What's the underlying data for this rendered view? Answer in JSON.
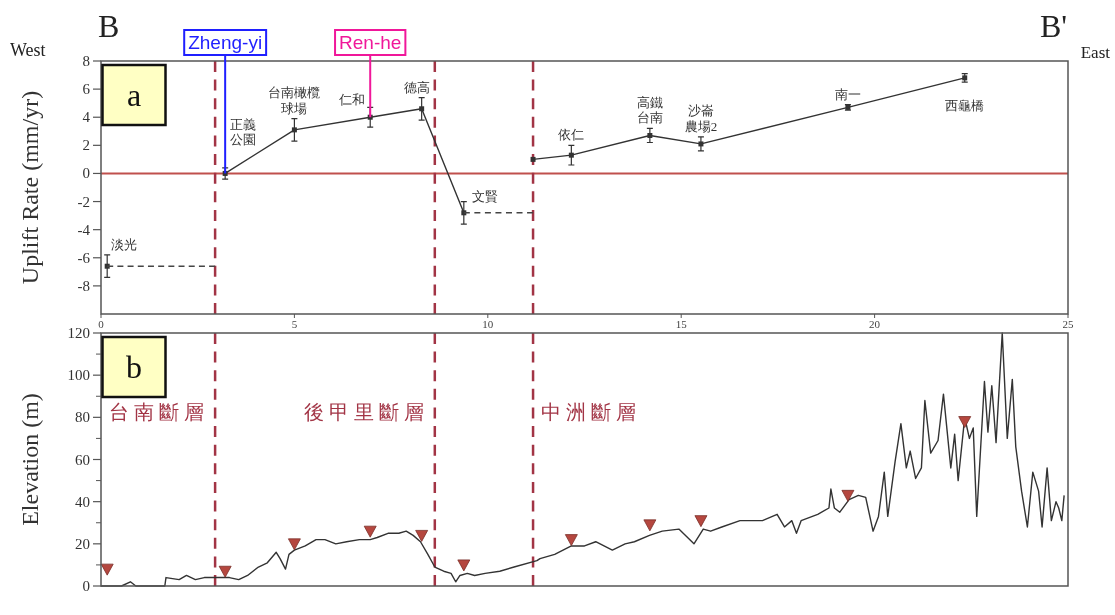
{
  "chart_data": [
    {
      "type": "line",
      "title": "a",
      "ylabel": "Uplift Rate (mm/yr)",
      "xlim": [
        0,
        25
      ],
      "xticks": [
        0,
        5,
        10,
        15,
        20,
        25
      ],
      "ylim": [
        -10,
        8
      ],
      "yticks": [
        -8,
        -6,
        -4,
        -2,
        0,
        2,
        4,
        6,
        8
      ],
      "marker": "square",
      "series": [
        {
          "type": "scatter",
          "color": "#333333",
          "x": [
            0.16
          ],
          "values": [
            -6.6
          ],
          "errors": [
            0.8
          ],
          "value_labels": [
            "淡光"
          ]
        },
        {
          "color": "#333333",
          "x": [
            3.21,
            5.0,
            6.96,
            8.29,
            9.38
          ],
          "values": [
            0,
            3.1,
            4.0,
            4.6,
            -2.8
          ],
          "errors": [
            0.4,
            0.8,
            0.7,
            0.8,
            0.8
          ],
          "value_labels": [
            "正義公園",
            "台南橄欖球場",
            "仁和",
            "德高",
            "文賢"
          ]
        },
        {
          "color": "#333333",
          "x": [
            11.17,
            12.16,
            14.19,
            15.51,
            19.31,
            22.33
          ],
          "values": [
            1.0,
            1.3,
            2.7,
            2.1,
            4.7,
            6.8
          ],
          "errors": [
            null,
            0.7,
            0.5,
            0.5,
            0.2,
            0.3
          ],
          "value_labels": [
            null,
            "依仁",
            "高鐵台南",
            "沙崙農場2",
            "南一",
            "西龜橋"
          ]
        },
        {
          "color": "#444444",
          "x": [
            0.16,
            2.95
          ],
          "values": [
            -6.6,
            -6.6
          ],
          "line_style": "dashed",
          "marker": "none"
        },
        {
          "color": "#444444",
          "x": [
            9.38,
            11.17
          ],
          "values": [
            -2.8,
            -2.8
          ],
          "line_style": "dashed",
          "marker": "none"
        }
      ],
      "ref_lines": [
        {
          "axis": "y",
          "value": 0,
          "color": "#c0504d"
        },
        {
          "axis": "x",
          "value": 2.95,
          "color": "#a23445",
          "line_style": "dashed"
        },
        {
          "axis": "x",
          "value": 8.63,
          "color": "#a23445",
          "line_style": "dashed"
        },
        {
          "axis": "x",
          "value": 11.17,
          "color": "#a23445",
          "line_style": "dashed"
        }
      ],
      "annotations": [
        "B",
        "West",
        "B'",
        "East",
        {
          "text": "Zheng-yi",
          "x": 3.21,
          "y": 0
        },
        {
          "text": "Ren-he",
          "x": 6.96,
          "y": 4.0
        }
      ]
    },
    {
      "type": "line",
      "title": "b",
      "ylabel": "Elevation (m)",
      "xlim": [
        0,
        25
      ],
      "ylim": [
        0,
        120
      ],
      "yticks": [
        0,
        20,
        40,
        60,
        80,
        100,
        120
      ],
      "tick_labels": "y",
      "series": [
        {
          "color": "#333333",
          "x": [
            0,
            0.53,
            0.76,
            0.9,
            1.65,
            1.68,
            2.02,
            2.21,
            2.44,
            2.67,
            2.95,
            3.32,
            3.56,
            3.79,
            4.07,
            4.3,
            4.53,
            4.63,
            4.77,
            4.86,
            5.0,
            5.28,
            5.56,
            5.79,
            6.07,
            6.35,
            6.68,
            6.96,
            7.14,
            7.42,
            7.7,
            7.89,
            8.07,
            8.26,
            8.45,
            8.63,
            8.86,
            9.05,
            9.17,
            9.28,
            9.47,
            9.66,
            9.93,
            10.31,
            10.68,
            11.27,
            11.35,
            11.73,
            12.16,
            12.5,
            12.79,
            13.22,
            13.55,
            13.79,
            14.18,
            14.51,
            14.94,
            15.33,
            15.57,
            15.76,
            16.05,
            16.52,
            17.1,
            17.48,
            17.67,
            17.86,
            17.98,
            18.1,
            18.53,
            18.82,
            18.87,
            18.96,
            19.1,
            19.34,
            19.58,
            19.77,
            19.96,
            20.1,
            20.25,
            20.34,
            20.53,
            20.68,
            20.82,
            20.92,
            21.06,
            21.21,
            21.3,
            21.45,
            21.64,
            21.78,
            21.97,
            22.07,
            22.16,
            22.33,
            22.45,
            22.55,
            22.64,
            22.84,
            22.93,
            23.03,
            23.14,
            23.3,
            23.43,
            23.56,
            23.65,
            23.8,
            23.95,
            24.09,
            24.24,
            24.33,
            24.46,
            24.57,
            24.69,
            24.76,
            24.84,
            24.9
          ],
          "values": [
            0,
            0,
            2,
            0,
            0,
            4,
            3,
            5,
            3,
            4,
            4,
            4,
            3,
            5,
            9,
            11,
            16,
            13,
            8,
            15,
            17,
            19,
            22,
            22,
            20,
            21,
            22,
            22,
            23,
            25,
            25,
            26,
            24,
            21,
            15,
            9,
            7,
            6,
            2,
            5,
            6,
            5,
            6,
            7,
            9,
            12,
            13,
            15,
            19,
            19,
            21,
            17,
            20,
            21,
            24,
            26,
            27,
            20,
            27,
            26,
            28,
            31,
            31,
            34,
            28,
            31,
            25,
            31,
            34,
            37,
            46,
            37,
            35,
            41,
            43,
            42,
            26,
            33,
            54,
            33,
            59,
            77,
            56,
            64,
            51,
            56,
            88,
            63,
            69,
            91,
            56,
            72,
            50,
            80,
            70,
            75,
            33,
            97,
            73,
            95,
            68,
            120,
            70,
            98,
            66,
            45,
            28,
            54,
            45,
            28,
            56,
            31,
            40,
            37,
            31,
            43
          ]
        },
        {
          "type": "scatter",
          "color": "#b5473f",
          "marker": "triangle",
          "x": [
            0.16,
            3.21,
            5.0,
            6.96,
            8.29,
            9.38,
            12.16,
            14.19,
            15.51,
            19.31,
            22.33
          ],
          "values": [
            8,
            7,
            20,
            26,
            24,
            10,
            22,
            29,
            31,
            43,
            78
          ]
        }
      ],
      "ref_lines": [
        {
          "axis": "x",
          "value": 2.95,
          "color": "#a23445",
          "line_style": "dashed",
          "label": "台南斷層"
        },
        {
          "axis": "x",
          "value": 8.63,
          "color": "#a23445",
          "line_style": "dashed",
          "label": "後甲里斷層"
        },
        {
          "axis": "x",
          "value": 11.17,
          "color": "#a23445",
          "line_style": "dashed",
          "label": "中洲斷層"
        }
      ]
    }
  ]
}
